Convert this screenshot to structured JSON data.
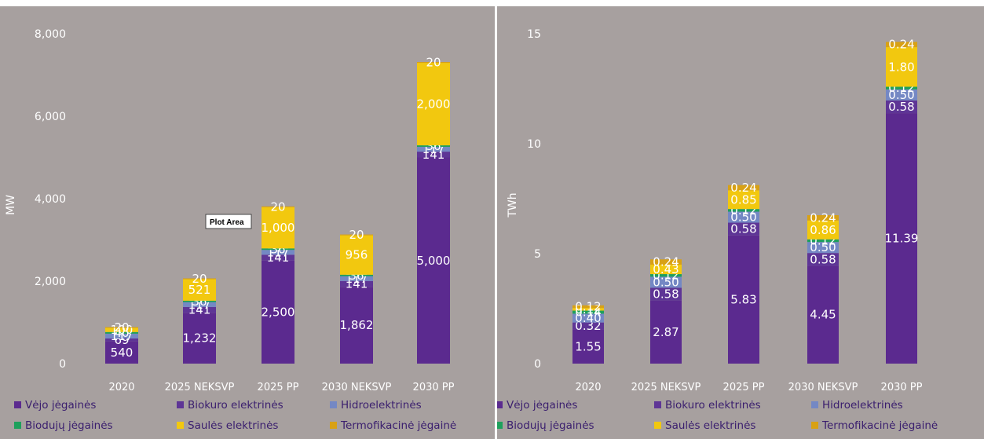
{
  "colors": {
    "vejo": "#5b2a8f",
    "biokuro": "#5e3596",
    "hidro": "#7488c4",
    "biodujos": "#1ea05c",
    "saule": "#f2c80f",
    "termo": "#d8a115"
  },
  "legend": [
    {
      "key": "vejo",
      "label": "Vėjo jėgainės"
    },
    {
      "key": "biokuro",
      "label": "Biokuro elektrinės"
    },
    {
      "key": "hidro",
      "label": "Hidroelektrinės"
    },
    {
      "key": "biodujos",
      "label": "Biodujų jėgainės"
    },
    {
      "key": "saule",
      "label": "Saulės elektrinės"
    },
    {
      "key": "termo",
      "label": "Termofikacinė jėgainė"
    }
  ],
  "tooltip": {
    "label": "Plot Area"
  },
  "chart_data": [
    {
      "type": "bar",
      "stacked": true,
      "ylabel": "MW",
      "ylim": [
        0,
        8000
      ],
      "yticks": [
        "0",
        "2,000",
        "4,000",
        "6,000",
        "8,000"
      ],
      "ytick_values": [
        0,
        2000,
        4000,
        6000,
        8000
      ],
      "categories": [
        "2020",
        "2025 NEKSVP",
        "2025 PP",
        "2030 NEKSVP",
        "2030 PP"
      ],
      "series": [
        {
          "key": "vejo",
          "name": "Vėjo jėgainės",
          "values": [
            540,
            1232,
            2500,
            1862,
            5000
          ],
          "labels": [
            "540",
            "1,232",
            "2,500",
            "1,862",
            "5,000"
          ]
        },
        {
          "key": "biokuro",
          "name": "Biokuro elektrinės",
          "values": [
            69,
            141,
            141,
            141,
            141
          ],
          "labels": [
            "69",
            "141",
            "141",
            "141",
            "141"
          ]
        },
        {
          "key": "hidro",
          "name": "Hidroelektrinės",
          "values": [
            117,
            117,
            117,
            117,
            117
          ],
          "labels": [
            "117",
            "117",
            "117",
            "117",
            "117"
          ]
        },
        {
          "key": "biodujos",
          "name": "Biodujų jėgainės",
          "values": [
            40,
            36,
            36,
            36,
            36
          ],
          "labels": [
            "40",
            "36",
            "36",
            "36",
            "36"
          ]
        },
        {
          "key": "saule",
          "name": "Saulės elektrinės",
          "values": [
            100,
            521,
            1000,
            956,
            2000
          ],
          "labels": [
            "100",
            "521",
            "1,000",
            "956",
            "2,000"
          ]
        },
        {
          "key": "termo",
          "name": "Termofikacinė jėgainė",
          "values": [
            20,
            20,
            20,
            20,
            20
          ],
          "labels": [
            "20",
            "20",
            "20",
            "20",
            "20"
          ]
        }
      ],
      "legend_position": "bottom"
    },
    {
      "type": "bar",
      "stacked": true,
      "ylabel": "TWh",
      "ylim": [
        0,
        15
      ],
      "yticks": [
        "0",
        "5",
        "10",
        "15"
      ],
      "ytick_values": [
        0,
        5,
        10,
        15
      ],
      "categories": [
        "2020",
        "2025 NEKSVP",
        "2025 PP",
        "2030 NEKSVP",
        "2030 PP"
      ],
      "series": [
        {
          "key": "vejo",
          "name": "Vėjo jėgainės",
          "values": [
            1.55,
            2.87,
            5.83,
            4.45,
            11.39
          ],
          "labels": [
            "1.55",
            "2.87",
            "5.83",
            "4.45",
            "11.39"
          ]
        },
        {
          "key": "biokuro",
          "name": "Biokuro elektrinės",
          "values": [
            0.32,
            0.58,
            0.58,
            0.58,
            0.58
          ],
          "labels": [
            "0.32",
            "0.58",
            "0.58",
            "0.58",
            "0.58"
          ]
        },
        {
          "key": "hidro",
          "name": "Hidroelektrinės",
          "values": [
            0.4,
            0.5,
            0.5,
            0.5,
            0.5
          ],
          "labels": [
            "0.40",
            "0.50",
            "0.50",
            "0.50",
            "0.50"
          ]
        },
        {
          "key": "biodujos",
          "name": "Biodujų jėgainės",
          "values": [
            0.14,
            0.12,
            0.12,
            0.12,
            0.12
          ],
          "labels": [
            "0.14",
            "0.12",
            "0.12",
            "0.12",
            "0.12"
          ]
        },
        {
          "key": "saule",
          "name": "Saulės elektrinės",
          "values": [
            0.12,
            0.43,
            0.85,
            0.86,
            1.8
          ],
          "labels": [
            "0.12",
            "0.43",
            "0.85",
            "0.86",
            "1.80"
          ]
        },
        {
          "key": "termo",
          "name": "Termofikacinė jėgainė",
          "values": [
            0.12,
            0.24,
            0.24,
            0.24,
            0.24
          ],
          "labels": [
            "0.12",
            "0.24",
            "0.24",
            "0.24",
            "0.24"
          ]
        }
      ],
      "legend_position": "bottom"
    }
  ]
}
